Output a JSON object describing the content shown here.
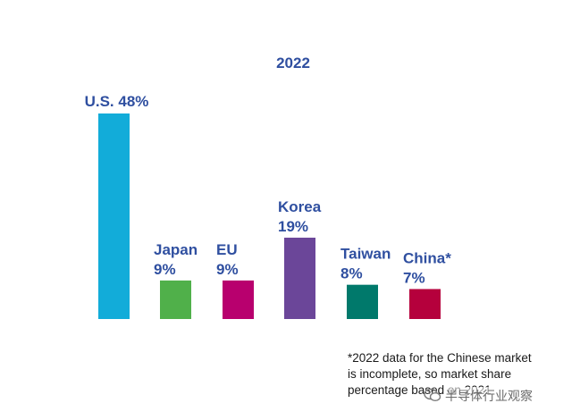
{
  "chart_data": {
    "type": "bar",
    "title": "2022",
    "categories": [
      "U.S.",
      "Japan",
      "EU",
      "Korea",
      "Taiwan",
      "China*"
    ],
    "values": [
      48,
      9,
      9,
      19,
      8,
      7
    ],
    "value_labels": [
      "48%",
      "9%",
      "9%",
      "19%",
      "8%",
      "7%"
    ],
    "colors": [
      "#12acd9",
      "#50b04a",
      "#b8006e",
      "#6b4699",
      "#00796b",
      "#b5003c"
    ],
    "xlabel": "",
    "ylabel": "",
    "ylim": [
      0,
      50
    ],
    "grid": false,
    "legend": "none"
  },
  "footnote": [
    "*2022 data for the Chinese market",
    "is incomplete, so market share",
    "percentage based on 2021"
  ],
  "watermark": {
    "text": "半导体行业观察",
    "icon": "wechat-icon"
  }
}
